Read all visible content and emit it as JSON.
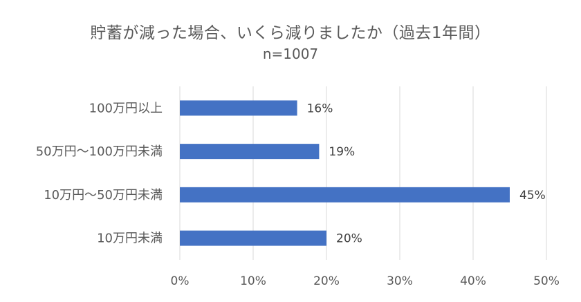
{
  "chart_data": {
    "type": "bar",
    "orientation": "horizontal",
    "title": "貯蓄が減った場合、いくら減りましたか（過去1年間）",
    "subtitle": "n=1007",
    "categories": [
      "100万円以上",
      "50万円～100万円未満",
      "10万円～50万円未満",
      "10万円未満"
    ],
    "values": [
      16,
      19,
      45,
      20
    ],
    "data_labels": [
      "16%",
      "19%",
      "45%",
      "20%"
    ],
    "x_ticks": [
      "0%",
      "10%",
      "20%",
      "30%",
      "40%",
      "50%"
    ],
    "xlim": [
      0,
      50
    ],
    "unit": "%",
    "grid": true,
    "legend": "none",
    "bar_color": "#4472C4",
    "grid_color": "#D9D9D9"
  }
}
